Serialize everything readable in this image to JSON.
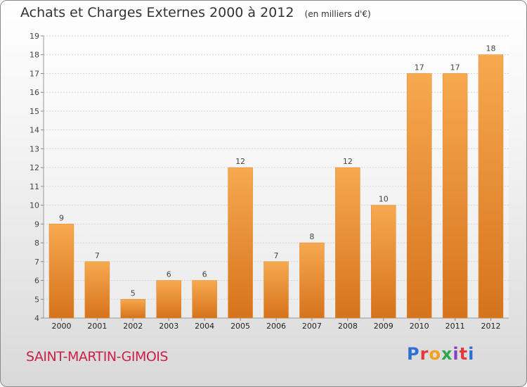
{
  "header": {
    "title": "Achats et Charges Externes 2000 à 2012",
    "unit": "(en milliers d'€)"
  },
  "footer": {
    "commune": "SAINT-MARTIN-GIMOIS",
    "logo_text": "Proxiti"
  },
  "colors": {
    "bar_light": "#f7a94f",
    "bar_dark": "#d6731c",
    "commune_text": "#cc1f4a",
    "logo_letters": [
      "#2e6fd4",
      "#e53a3a",
      "#f0a21b",
      "#2aa84a",
      "#8a3fc0",
      "#e53a3a",
      "#2e6fd4"
    ]
  },
  "chart_data": {
    "type": "bar",
    "title": "Achats et Charges Externes 2000 à 2012",
    "categories": [
      "2000",
      "2001",
      "2002",
      "2003",
      "2004",
      "2005",
      "2006",
      "2007",
      "2008",
      "2009",
      "2010",
      "2011",
      "2012"
    ],
    "values": [
      9,
      7,
      5,
      6,
      6,
      12,
      7,
      8,
      12,
      10,
      17,
      17,
      18
    ],
    "ylim": [
      4,
      19
    ],
    "yticks": [
      4,
      5,
      6,
      7,
      8,
      9,
      10,
      11,
      12,
      13,
      14,
      15,
      16,
      17,
      18,
      19
    ],
    "grid": true,
    "legend": "none"
  }
}
